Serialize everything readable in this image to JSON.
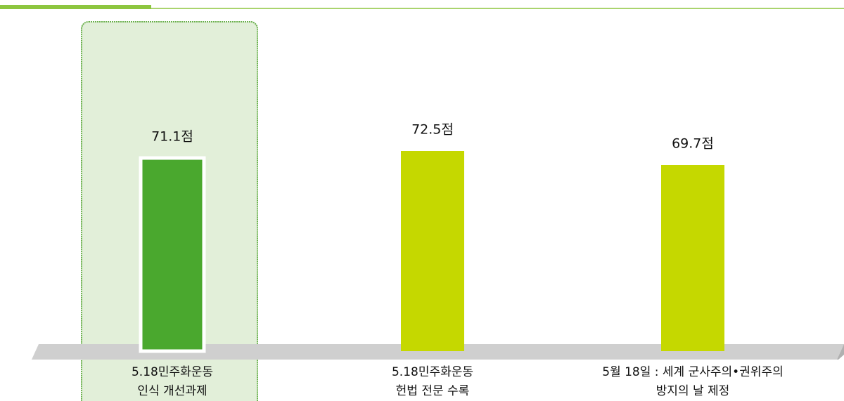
{
  "chart_data": {
    "type": "bar",
    "categories": [
      "5.18민주화운동\n인식 개선과제",
      "5.18민주화운동\n헌법 전문 수록",
      "5월 18일 : 세계 군사주의•권위주의\n방지의 날 제정"
    ],
    "values": [
      71.1,
      72.5,
      69.7
    ],
    "value_labels": [
      "71.1점",
      "72.5점",
      "69.7점"
    ],
    "colors": [
      "#4aa82e",
      "#c5d800",
      "#c5d800"
    ]
  }
}
